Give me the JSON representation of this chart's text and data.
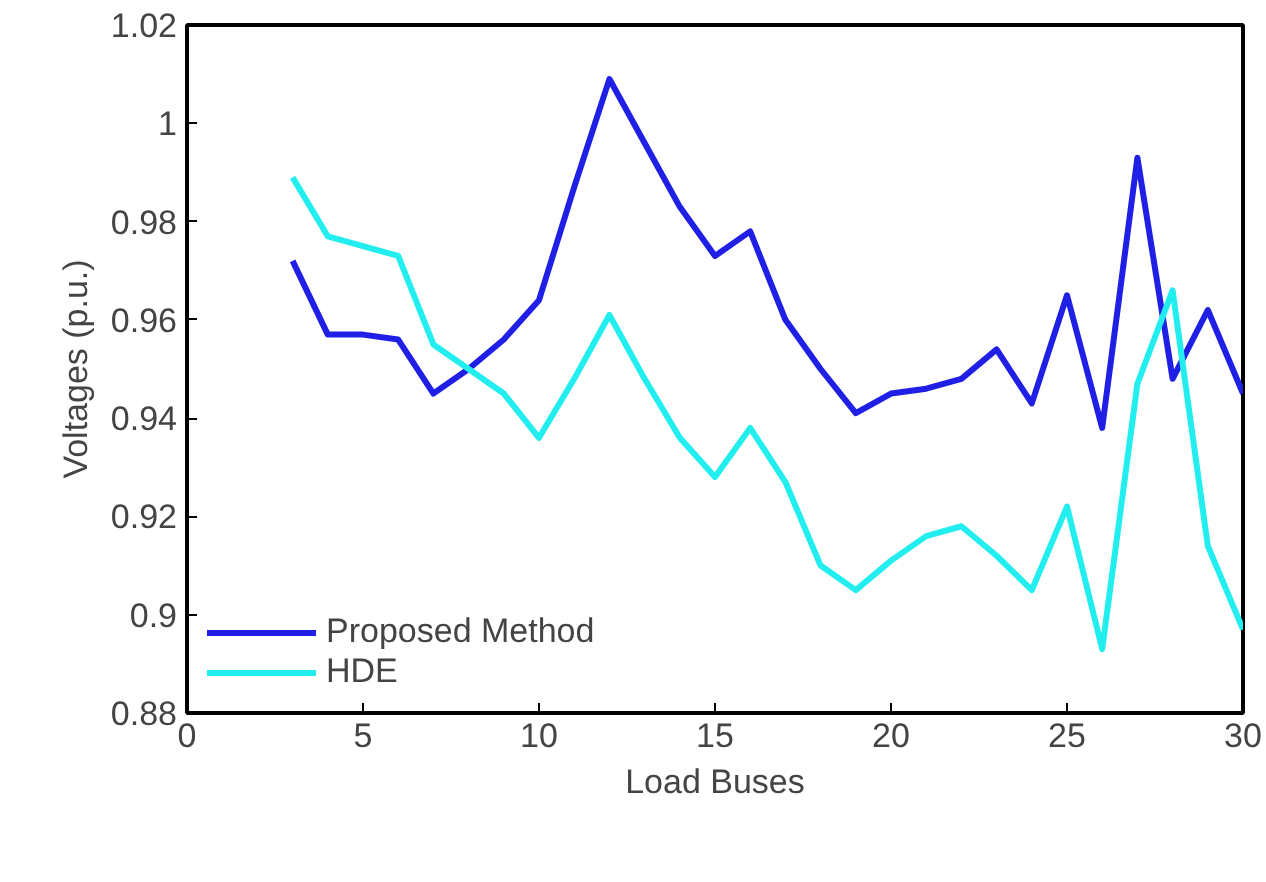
{
  "chart_data": {
    "type": "line",
    "xlabel": "Load Buses",
    "ylabel": "Voltages (p.u.)",
    "x": [
      3,
      4,
      5,
      6,
      7,
      8,
      9,
      10,
      11,
      12,
      13,
      14,
      15,
      16,
      17,
      18,
      19,
      20,
      21,
      22,
      23,
      24,
      25,
      26,
      27,
      28,
      29,
      30
    ],
    "series": [
      {
        "name": "Proposed Method",
        "color": "#1f1fe6",
        "values": [
          0.972,
          0.957,
          0.957,
          0.956,
          0.945,
          0.95,
          0.956,
          0.964,
          0.987,
          1.009,
          0.996,
          0.983,
          0.973,
          0.978,
          0.96,
          0.95,
          0.941,
          0.945,
          0.946,
          0.948,
          0.954,
          0.943,
          0.965,
          0.938,
          0.993,
          0.948,
          0.962,
          0.945
        ]
      },
      {
        "name": "HDE",
        "color": "#22eef0",
        "values": [
          0.989,
          0.977,
          0.975,
          0.973,
          0.955,
          0.95,
          0.945,
          0.936,
          0.948,
          0.961,
          0.948,
          0.936,
          0.928,
          0.938,
          0.927,
          0.91,
          0.905,
          0.911,
          0.916,
          0.918,
          0.912,
          0.905,
          0.922,
          0.893,
          0.947,
          0.966,
          0.914,
          0.897
        ]
      }
    ],
    "xlim": [
      0,
      30
    ],
    "ylim": [
      0.88,
      1.02
    ],
    "xticks": [
      0,
      5,
      10,
      15,
      20,
      25,
      30
    ],
    "yticks": [
      0.88,
      0.9,
      0.92,
      0.94,
      0.96,
      0.98,
      1,
      1.02
    ],
    "legend": "bottom left",
    "grid": false,
    "line_style": "solid",
    "marker": "none"
  }
}
